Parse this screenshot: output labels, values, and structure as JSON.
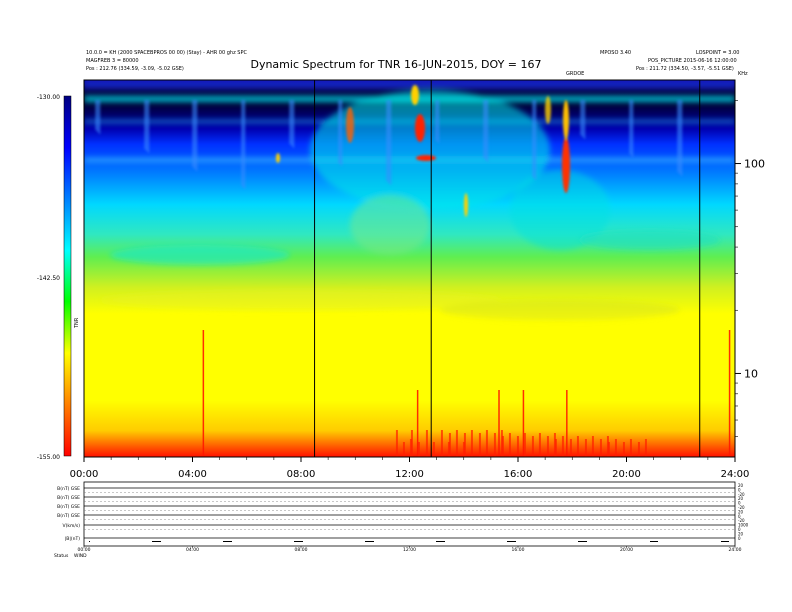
{
  "header": {
    "title": "Dynamic Spectrum for TNR 16-JUN-2015, DOY = 167",
    "left_line1": "10.0.0 = KH (2000 SPACEBPROS 00 00) (Stay) - AHR 00 ghz SPC",
    "left_line2": "MAGFREB 3 = 80000",
    "left_line3": "Pos : 212.76 (334.59, -3.09, -5.02 GSE)",
    "right_line1": "MPOSO 3.40",
    "right_line2": "LOSPOINT = 3.00",
    "right_line3": "POS_PICTURE 2015-06-16 12:00:00",
    "right_line4": "Pos : 211.72 (334.50, -3.57, -5.51 GSE)",
    "mid_tag": "GRDOE",
    "corner_tag": "KHz"
  },
  "colorbar": {
    "ticks": [
      "-130.00",
      "-142.50",
      "-155.00"
    ],
    "unit": "TNR",
    "stops": [
      "#ff0000",
      "#ff7f00",
      "#ffff00",
      "#00ff00",
      "#00ffff",
      "#0080ff",
      "#0000ff",
      "#000080"
    ]
  },
  "chart_data": {
    "type": "heatmap",
    "title": "Dynamic Spectrum for TNR 16-JUN-2015, DOY = 167",
    "x_range_hours": [
      0,
      24
    ],
    "x_tick_labels": [
      "00:00",
      "04:00",
      "08:00",
      "12:00",
      "16:00",
      "20:00",
      "24:00"
    ],
    "y_scale": "log",
    "y_range_khz": [
      4,
      250
    ],
    "y_tick_labels": [
      "10",
      "100"
    ],
    "color_range": [
      -155,
      -130
    ],
    "event_times_hours": [
      8.5,
      12.8,
      22.7
    ],
    "burst_times_hours": [
      4.4,
      12.3,
      15.3,
      16.2,
      17.8,
      23.8
    ]
  },
  "bottom_panel": {
    "row_labels": [
      "B(nT) GSE",
      "B(nT) GSE",
      "B(nT) GSE",
      "B(nT) GSE",
      "V(km/s)",
      "|B|(nT)"
    ],
    "right_scale": [
      "20",
      "0",
      "-20",
      "20",
      "0",
      "-20",
      "20",
      "0",
      "-20",
      "1000",
      "0",
      "20",
      "0"
    ],
    "time_labels": [
      "00:00",
      "04:00",
      "08:00",
      "12:00",
      "16:00",
      "20:00",
      "24:00"
    ],
    "footer_label": "Status",
    "footer_value": "WIND"
  }
}
